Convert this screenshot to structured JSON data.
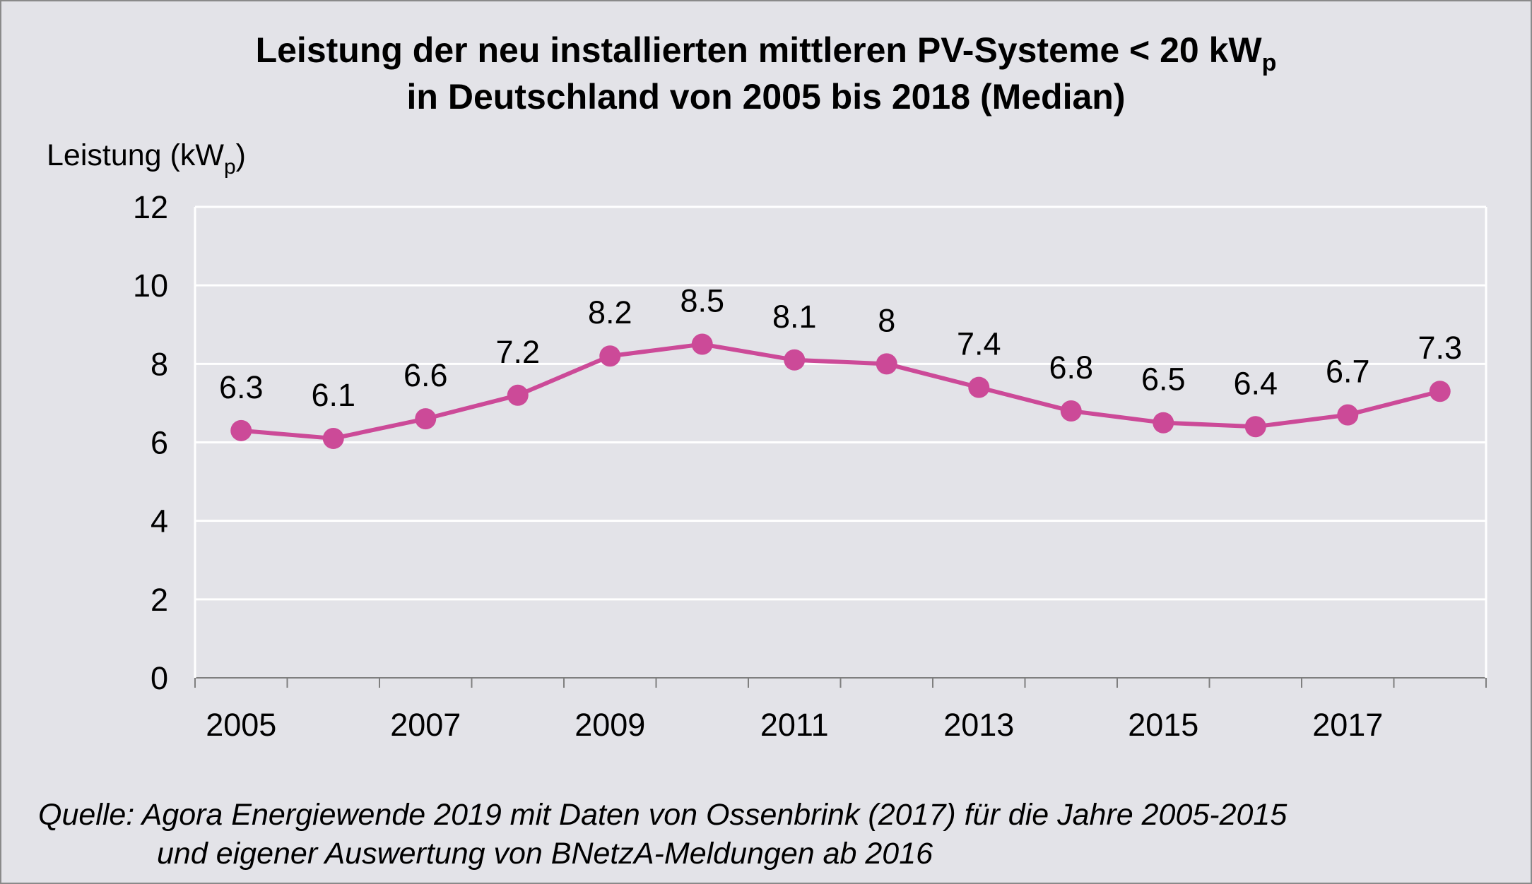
{
  "title": {
    "line1_main": "Leistung der neu installierten mittleren PV-Systeme < 20 kW",
    "line1_sub": "p",
    "line2": "in Deutschland von 2005 bis 2018 (Median)"
  },
  "y_axis_title": {
    "main": "Leistung (kW",
    "sub": "p",
    "close": ")"
  },
  "source": {
    "line1": "Quelle: Agora Energiewende 2019 mit Daten von Ossenbrink (2017) für die Jahre 2005-2015",
    "line2": "und eigener Auswertung von BNetzA-Meldungen ab 2016"
  },
  "chart_data": {
    "type": "line",
    "title": "Leistung der neu installierten mittleren PV-Systeme < 20 kWp in Deutschland von 2005 bis 2018 (Median)",
    "xlabel": "",
    "ylabel": "Leistung (kWp)",
    "x": [
      2005,
      2006,
      2007,
      2008,
      2009,
      2010,
      2011,
      2012,
      2013,
      2014,
      2015,
      2016,
      2017,
      2018
    ],
    "values": [
      6.3,
      6.1,
      6.6,
      7.2,
      8.2,
      8.5,
      8.1,
      8,
      7.4,
      6.8,
      6.5,
      6.4,
      6.7,
      7.3
    ],
    "data_labels": [
      "6.3",
      "6.1",
      "6.6",
      "7.2",
      "8.2",
      "8.5",
      "8.1",
      "8",
      "7.4",
      "6.8",
      "6.5",
      "6.4",
      "6.7",
      "7.3"
    ],
    "x_tick_labels": [
      "2005",
      "2007",
      "2009",
      "2011",
      "2013",
      "2015",
      "2017"
    ],
    "y_ticks": [
      0,
      2,
      4,
      6,
      8,
      10,
      12
    ],
    "ylim": [
      0,
      12
    ],
    "grid": true,
    "legend": "none",
    "line_color": "#cc4a98",
    "background_color": "#e3e3e8"
  }
}
